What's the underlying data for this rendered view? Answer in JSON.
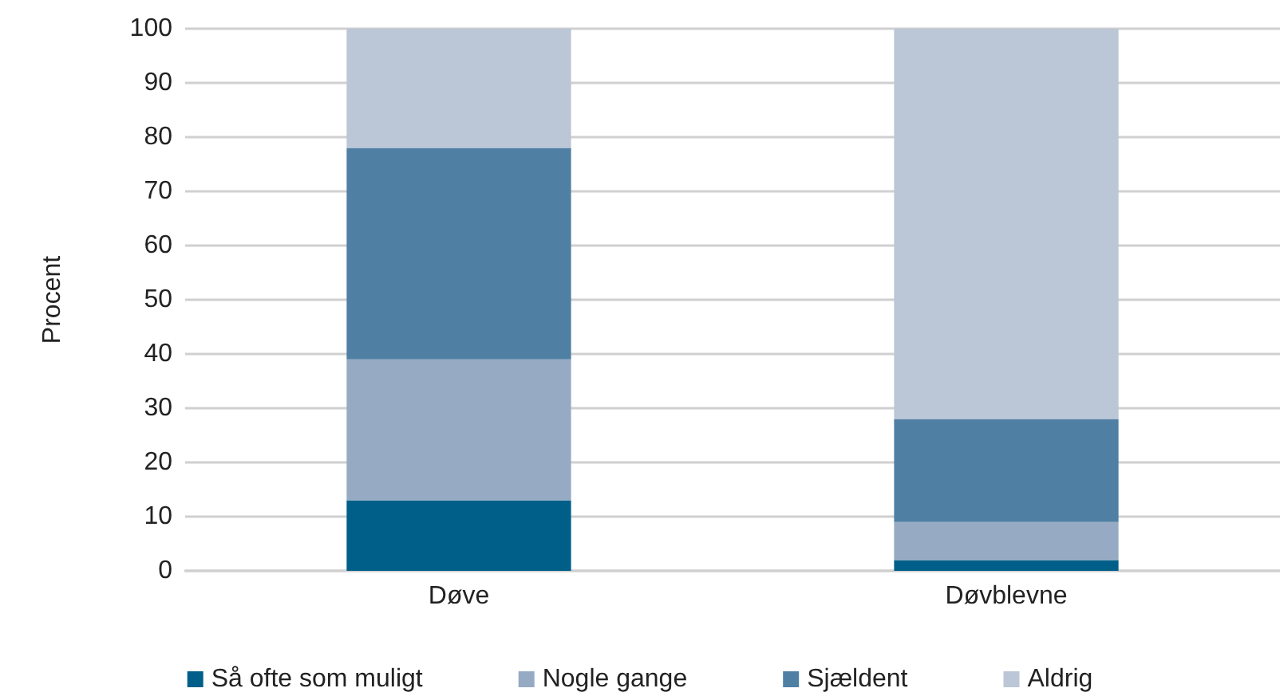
{
  "chart_data": {
    "type": "bar",
    "stacked": true,
    "ylabel": "Procent",
    "categories": [
      "Døve",
      "Døvblevne"
    ],
    "series": [
      {
        "name": "Så ofte som muligt",
        "color": "#005f88",
        "values": [
          13,
          2
        ]
      },
      {
        "name": "Nogle gange",
        "color": "#96abc3",
        "values": [
          26,
          7
        ]
      },
      {
        "name": "Sjældent",
        "color": "#4f80a4",
        "values": [
          39,
          19
        ]
      },
      {
        "name": "Aldrig",
        "color": "#bbc6d6",
        "values": [
          22,
          72
        ]
      }
    ],
    "ylim": [
      0,
      100
    ],
    "yticks": [
      0,
      10,
      20,
      30,
      40,
      50,
      60,
      70,
      80,
      90,
      100
    ],
    "grid": "y",
    "legend": "bottom"
  }
}
